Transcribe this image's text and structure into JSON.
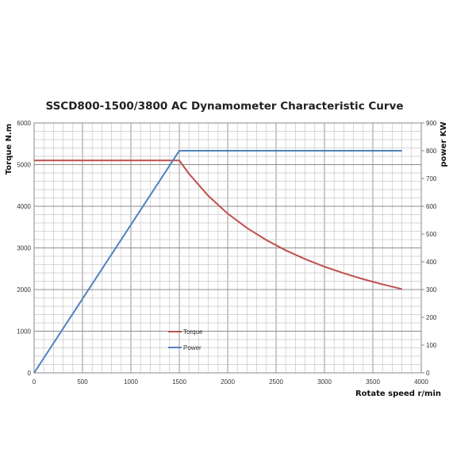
{
  "chart_data": {
    "type": "line",
    "title": "SSCD800-1500/3800 AC Dynamometer Characteristic Curve",
    "xlabel": "Rotate speed r/min",
    "ylabel": "Torque N.m",
    "y2label": "power KW",
    "xlim": [
      0,
      4000
    ],
    "ylim": [
      0,
      6000
    ],
    "y2lim": [
      0,
      900
    ],
    "xticks": [
      "0",
      "500",
      "1000",
      "1500",
      "2000",
      "2500",
      "3000",
      "3500",
      "4000"
    ],
    "yticks": [
      "0",
      "1000",
      "2000",
      "3000",
      "4000",
      "5000",
      "6000"
    ],
    "y2ticks": [
      "0",
      "100",
      "200",
      "300",
      "400",
      "500",
      "600",
      "700",
      "800",
      "900"
    ],
    "grid": true,
    "legend_position": "center-left",
    "series": [
      {
        "name": "Torque",
        "axis": "left",
        "color": "#c0504d",
        "x": [
          0,
          1500,
          1600,
          1800,
          2000,
          2200,
          2400,
          2600,
          2800,
          3000,
          3200,
          3400,
          3600,
          3800
        ],
        "y": [
          5100,
          5100,
          4781,
          4250,
          3825,
          3477,
          3188,
          2942,
          2732,
          2550,
          2391,
          2250,
          2125,
          2013
        ]
      },
      {
        "name": "Power",
        "axis": "right",
        "color": "#4f81bd",
        "x": [
          0,
          1500,
          3800
        ],
        "y": [
          0,
          800,
          800
        ]
      }
    ]
  }
}
